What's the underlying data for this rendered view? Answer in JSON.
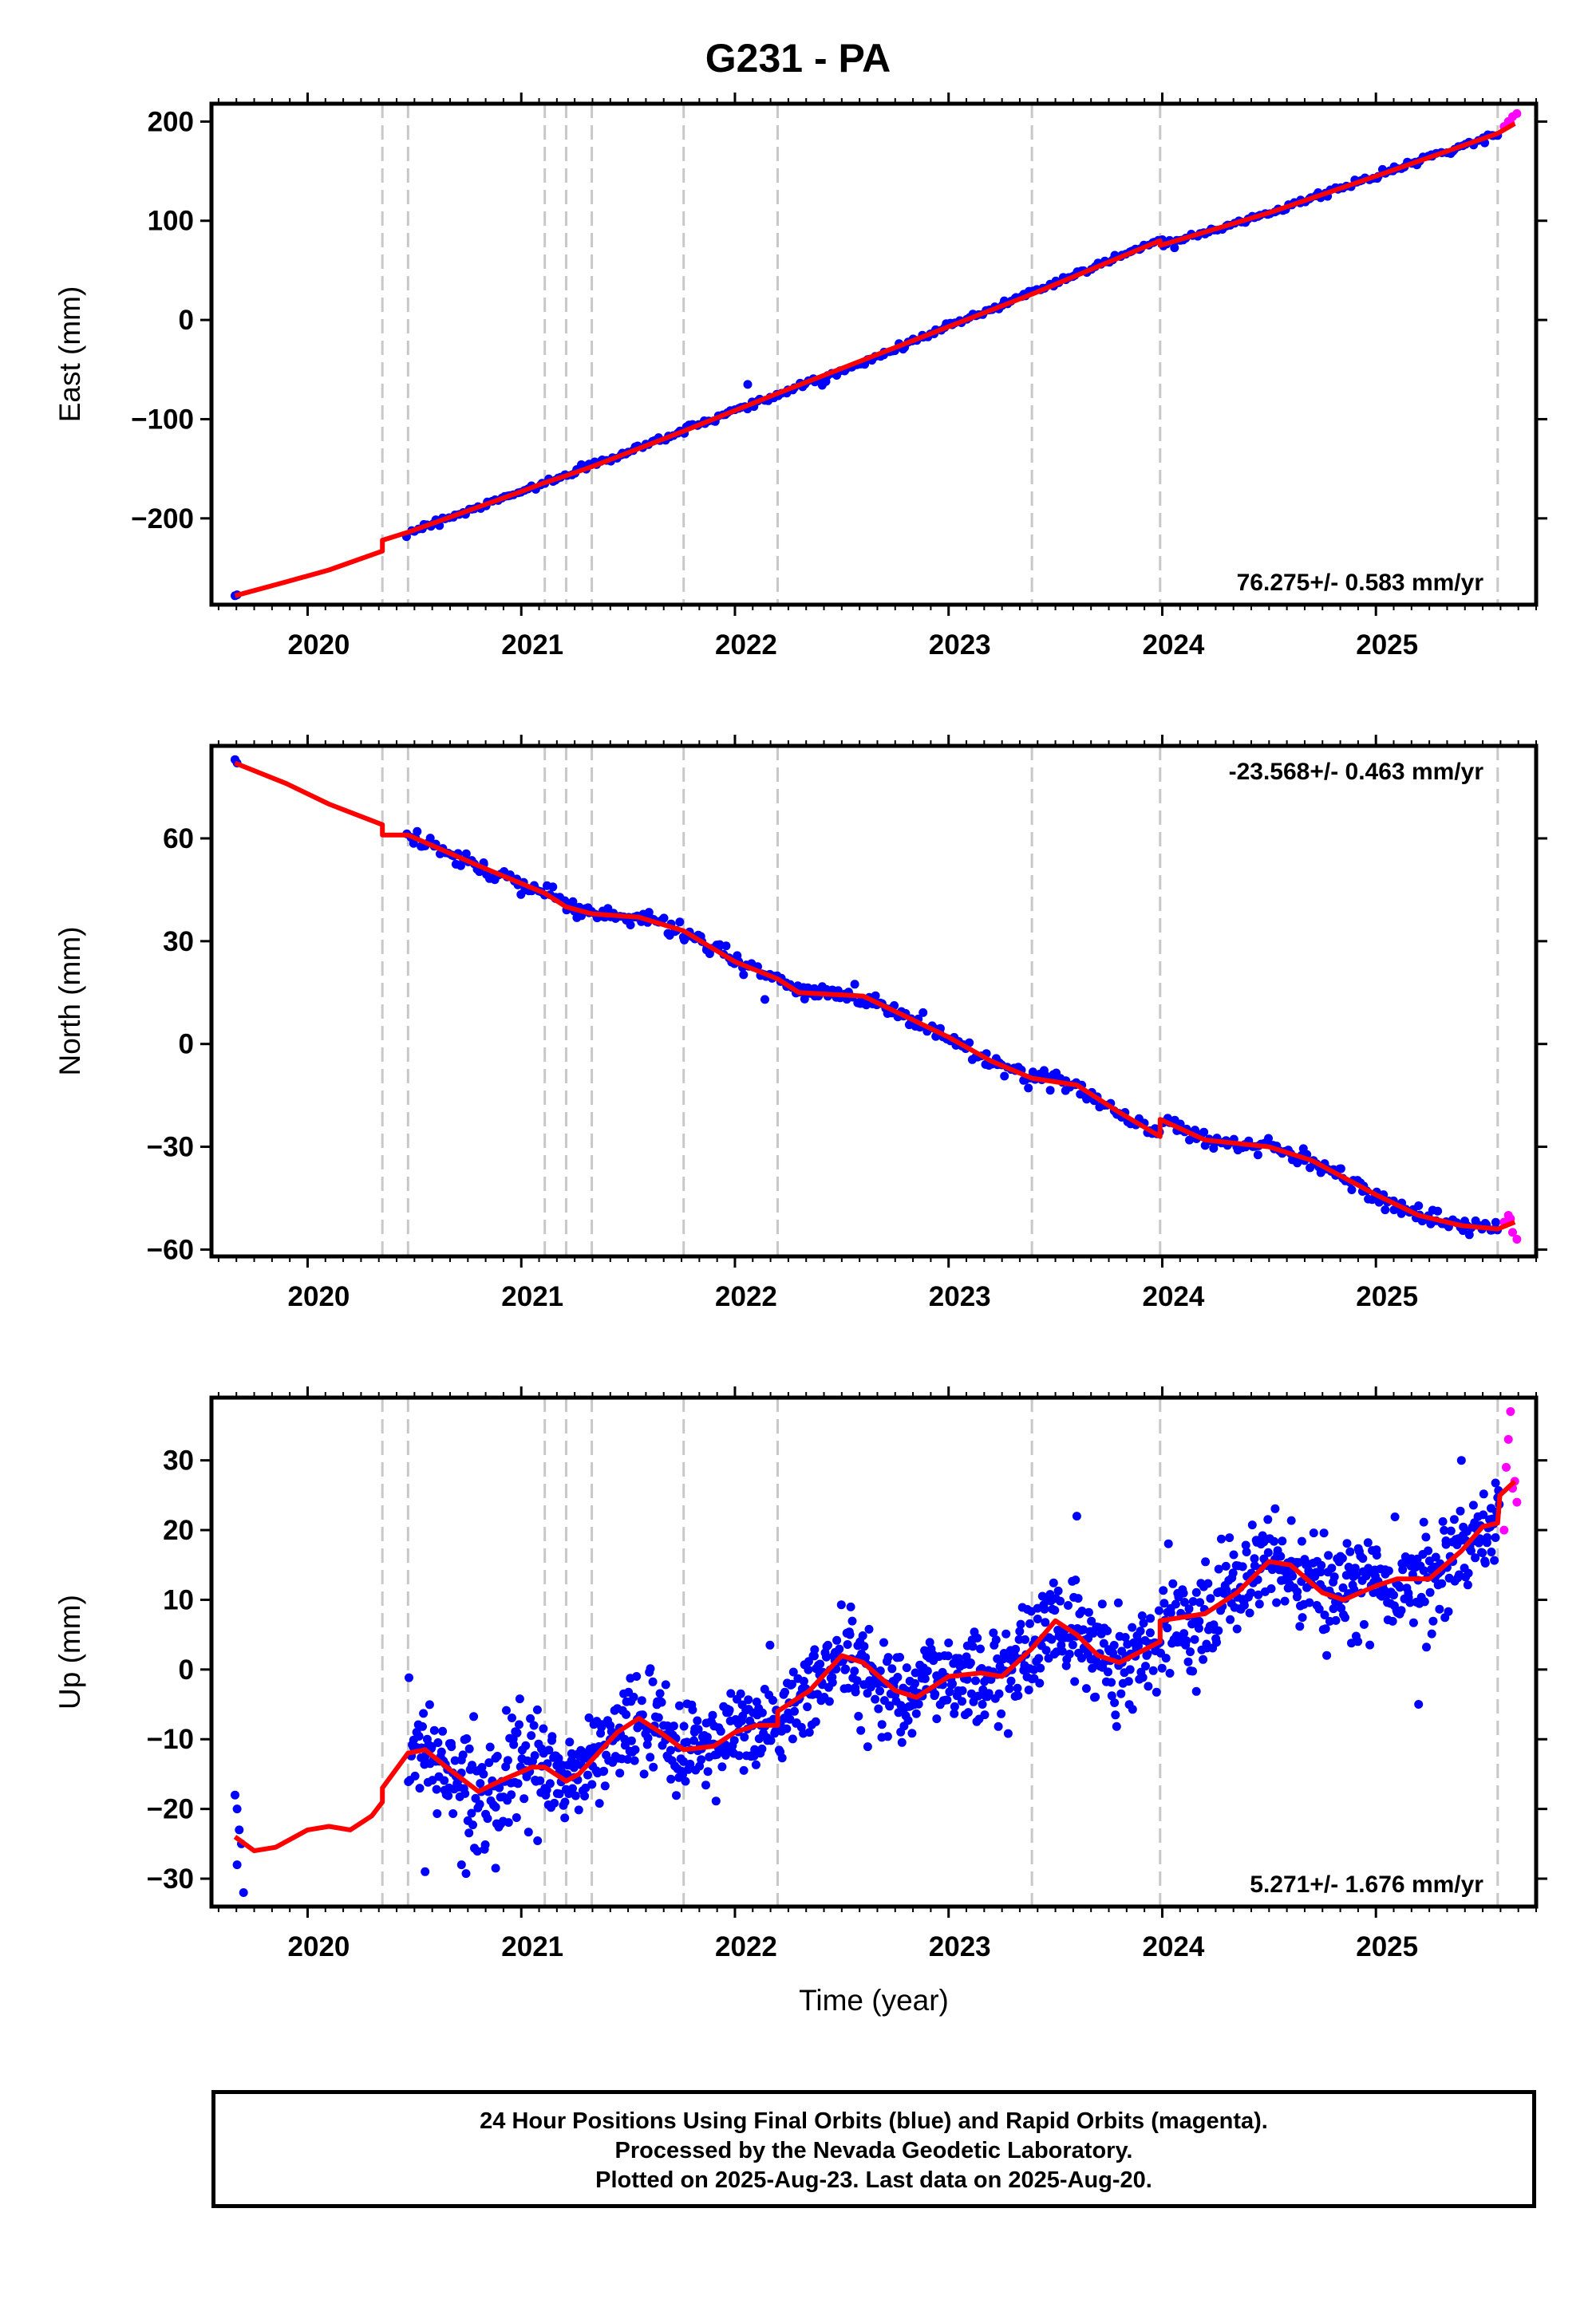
{
  "title": "G231 - PA",
  "chart_data": [
    {
      "type": "scatter",
      "id": "east",
      "ylabel": "East (mm)",
      "xlim": [
        2019.55,
        2025.75
      ],
      "ylim": [
        -287,
        218
      ],
      "yticks": [
        -200,
        -100,
        0,
        100,
        200
      ],
      "yticklabels": [
        "−200",
        "−100",
        "0",
        "100",
        "200"
      ],
      "xticks": [
        2020,
        2021,
        2022,
        2023,
        2024,
        2025
      ],
      "xticklabels": [
        "2020",
        "2021",
        "2022",
        "2023",
        "2024",
        "2025"
      ],
      "rate_label": "76.275+/- 0.583 mm/yr",
      "rate_position": "bottom-right",
      "vlines": [
        2020.35,
        2020.47,
        2021.11,
        2021.21,
        2021.33,
        2021.76,
        2022.2,
        2023.39,
        2023.99,
        2025.57
      ],
      "model_line": [
        [
          2019.66,
          -278
        ],
        [
          2019.9,
          -264
        ],
        [
          2020.1,
          -252
        ],
        [
          2020.35,
          -233
        ],
        [
          2020.35,
          -222
        ],
        [
          2020.47,
          -214
        ],
        [
          2021.0,
          -173
        ],
        [
          2021.11,
          -164
        ],
        [
          2021.21,
          -157
        ],
        [
          2021.33,
          -148
        ],
        [
          2021.76,
          -112
        ],
        [
          2022.2,
          -74
        ],
        [
          2023.39,
          26
        ],
        [
          2023.99,
          80
        ],
        [
          2023.99,
          75
        ],
        [
          2024.5,
          108
        ],
        [
          2025.0,
          145
        ],
        [
          2025.57,
          188
        ],
        [
          2025.65,
          198
        ]
      ],
      "series": [
        {
          "color": "#0000ff",
          "noise": 1.6,
          "density": 0.015,
          "start": 2020.47,
          "end": 2025.58,
          "anchors": [
            [
              2020.47,
              -214
            ],
            [
              2021.0,
              -173
            ],
            [
              2021.5,
              -133
            ],
            [
              2022.0,
              -91
            ],
            [
              2022.5,
              -52
            ],
            [
              2023.0,
              -6
            ],
            [
              2023.5,
              38
            ],
            [
              2023.99,
              81
            ],
            [
              2024.0,
              76
            ],
            [
              2024.5,
              108
            ],
            [
              2025.0,
              145
            ],
            [
              2025.58,
              188
            ]
          ],
          "extra": [
            [
              2019.66,
              -278
            ],
            [
              2019.67,
              -277
            ],
            [
              2022.06,
              -65
            ]
          ]
        },
        {
          "color": "#ff00ff",
          "noise": 0,
          "points": [
            [
              2025.6,
              195
            ],
            [
              2025.62,
              200
            ],
            [
              2025.64,
              205
            ],
            [
              2025.66,
              208
            ],
            [
              2025.63,
              198
            ]
          ]
        }
      ]
    },
    {
      "type": "scatter",
      "id": "north",
      "ylabel": "North (mm)",
      "xlim": [
        2019.55,
        2025.75
      ],
      "ylim": [
        -62,
        87
      ],
      "yticks": [
        -60,
        -30,
        0,
        30,
        60
      ],
      "yticklabels": [
        "−60",
        "−30",
        "0",
        "30",
        "60"
      ],
      "xticks": [
        2020,
        2021,
        2022,
        2023,
        2024,
        2025
      ],
      "xticklabels": [
        "2020",
        "2021",
        "2022",
        "2023",
        "2024",
        "2025"
      ],
      "rate_label": "-23.568+/- 0.463 mm/yr",
      "rate_position": "top-right",
      "vlines": [
        2020.35,
        2020.47,
        2021.11,
        2021.21,
        2021.33,
        2021.76,
        2022.2,
        2023.39,
        2023.99,
        2025.57
      ],
      "model_line": [
        [
          2019.66,
          82
        ],
        [
          2019.9,
          76
        ],
        [
          2020.1,
          70
        ],
        [
          2020.35,
          64
        ],
        [
          2020.35,
          61
        ],
        [
          2020.47,
          61
        ],
        [
          2020.8,
          52
        ],
        [
          2021.11,
          44
        ],
        [
          2021.21,
          40
        ],
        [
          2021.33,
          38
        ],
        [
          2021.55,
          37
        ],
        [
          2021.76,
          33
        ],
        [
          2022.0,
          24
        ],
        [
          2022.2,
          19
        ],
        [
          2022.3,
          15
        ],
        [
          2022.6,
          14
        ],
        [
          2022.8,
          8
        ],
        [
          2023.0,
          2
        ],
        [
          2023.2,
          -5
        ],
        [
          2023.39,
          -10
        ],
        [
          2023.6,
          -12
        ],
        [
          2023.8,
          -20
        ],
        [
          2023.99,
          -27
        ],
        [
          2023.99,
          -22
        ],
        [
          2024.2,
          -28
        ],
        [
          2024.5,
          -30
        ],
        [
          2024.7,
          -34
        ],
        [
          2025.0,
          -44
        ],
        [
          2025.2,
          -50
        ],
        [
          2025.4,
          -53
        ],
        [
          2025.57,
          -54
        ],
        [
          2025.65,
          -52
        ]
      ],
      "series": [
        {
          "color": "#0000ff",
          "noise": 1.3,
          "density": 0.012,
          "start": 2020.47,
          "end": 2025.58,
          "anchors": [
            [
              2020.47,
              61
            ],
            [
              2020.8,
              52
            ],
            [
              2021.11,
              44
            ],
            [
              2021.33,
              38
            ],
            [
              2021.55,
              37
            ],
            [
              2021.76,
              33
            ],
            [
              2022.0,
              24
            ],
            [
              2022.2,
              19
            ],
            [
              2022.3,
              15
            ],
            [
              2022.6,
              14
            ],
            [
              2022.8,
              8
            ],
            [
              2023.0,
              2
            ],
            [
              2023.2,
              -5
            ],
            [
              2023.39,
              -10
            ],
            [
              2023.6,
              -12
            ],
            [
              2023.8,
              -20
            ],
            [
              2023.99,
              -27
            ],
            [
              2024.0,
              -22
            ],
            [
              2024.2,
              -28
            ],
            [
              2024.5,
              -30
            ],
            [
              2024.7,
              -34
            ],
            [
              2025.0,
              -44
            ],
            [
              2025.2,
              -50
            ],
            [
              2025.4,
              -53
            ],
            [
              2025.58,
              -54
            ]
          ],
          "extra": [
            [
              2019.66,
              83
            ],
            [
              2019.67,
              82
            ],
            [
              2022.14,
              13
            ]
          ]
        },
        {
          "color": "#ff00ff",
          "noise": 0,
          "points": [
            [
              2025.6,
              -52
            ],
            [
              2025.62,
              -50
            ],
            [
              2025.64,
              -55
            ],
            [
              2025.66,
              -57
            ],
            [
              2025.63,
              -51
            ]
          ]
        }
      ]
    },
    {
      "type": "scatter",
      "id": "up",
      "ylabel": "Up (mm)",
      "xlabel": "Time (year)",
      "xlim": [
        2019.55,
        2025.75
      ],
      "ylim": [
        -34,
        39
      ],
      "yticks": [
        -30,
        -20,
        -10,
        0,
        10,
        20,
        30
      ],
      "yticklabels": [
        "−30",
        "−20",
        "−10",
        "0",
        "10",
        "20",
        "30"
      ],
      "xticks": [
        2020,
        2021,
        2022,
        2023,
        2024,
        2025
      ],
      "xticklabels": [
        "2020",
        "2021",
        "2022",
        "2023",
        "2024",
        "2025"
      ],
      "rate_label": "5.271+/- 1.676 mm/yr",
      "rate_position": "bottom-right",
      "vlines": [
        2020.35,
        2020.47,
        2021.11,
        2021.21,
        2021.33,
        2021.76,
        2022.2,
        2023.39,
        2023.99,
        2025.57
      ],
      "model_line": [
        [
          2019.66,
          -24
        ],
        [
          2019.75,
          -26
        ],
        [
          2019.85,
          -25.5
        ],
        [
          2020.0,
          -23
        ],
        [
          2020.1,
          -22.5
        ],
        [
          2020.2,
          -23
        ],
        [
          2020.3,
          -21
        ],
        [
          2020.35,
          -19
        ],
        [
          2020.35,
          -17
        ],
        [
          2020.47,
          -12
        ],
        [
          2020.55,
          -11.5
        ],
        [
          2020.65,
          -14
        ],
        [
          2020.8,
          -17.5
        ],
        [
          2020.9,
          -16
        ],
        [
          2021.05,
          -14
        ],
        [
          2021.11,
          -14
        ],
        [
          2021.21,
          -16
        ],
        [
          2021.27,
          -15
        ],
        [
          2021.33,
          -13
        ],
        [
          2021.45,
          -9
        ],
        [
          2021.55,
          -7
        ],
        [
          2021.65,
          -9
        ],
        [
          2021.76,
          -11.5
        ],
        [
          2021.9,
          -11
        ],
        [
          2022.0,
          -9
        ],
        [
          2022.1,
          -8
        ],
        [
          2022.2,
          -8
        ],
        [
          2022.2,
          -6
        ],
        [
          2022.35,
          -3
        ],
        [
          2022.5,
          2
        ],
        [
          2022.6,
          1
        ],
        [
          2022.75,
          -3
        ],
        [
          2022.85,
          -4
        ],
        [
          2023.0,
          -1
        ],
        [
          2023.15,
          -0.5
        ],
        [
          2023.25,
          -1
        ],
        [
          2023.39,
          3
        ],
        [
          2023.5,
          7
        ],
        [
          2023.6,
          5
        ],
        [
          2023.7,
          2
        ],
        [
          2023.8,
          1
        ],
        [
          2023.99,
          4
        ],
        [
          2023.99,
          7
        ],
        [
          2024.2,
          8
        ],
        [
          2024.35,
          11
        ],
        [
          2024.5,
          15.5
        ],
        [
          2024.6,
          15
        ],
        [
          2024.75,
          11
        ],
        [
          2024.85,
          10
        ],
        [
          2025.0,
          12
        ],
        [
          2025.1,
          13
        ],
        [
          2025.25,
          13
        ],
        [
          2025.4,
          17
        ],
        [
          2025.5,
          20.5
        ],
        [
          2025.57,
          21
        ],
        [
          2025.58,
          25
        ],
        [
          2025.65,
          27
        ]
      ],
      "series": [
        {
          "color": "#0000ff",
          "noise": 3.4,
          "density": 0.004,
          "start": 2020.47,
          "end": 2025.58,
          "anchors": [
            [
              2020.47,
              -12
            ],
            [
              2020.55,
              -11.5
            ],
            [
              2020.65,
              -14
            ],
            [
              2020.8,
              -17.5
            ],
            [
              2021.05,
              -14
            ],
            [
              2021.21,
              -16
            ],
            [
              2021.33,
              -13
            ],
            [
              2021.55,
              -7
            ],
            [
              2021.76,
              -11.5
            ],
            [
              2022.0,
              -9
            ],
            [
              2022.2,
              -8
            ],
            [
              2022.35,
              -3
            ],
            [
              2022.5,
              2
            ],
            [
              2022.75,
              -3
            ],
            [
              2023.0,
              -1
            ],
            [
              2023.25,
              -1
            ],
            [
              2023.5,
              7
            ],
            [
              2023.8,
              1
            ],
            [
              2023.99,
              4
            ],
            [
              2024.0,
              7
            ],
            [
              2024.2,
              8
            ],
            [
              2024.5,
              15.5
            ],
            [
              2024.75,
              11
            ],
            [
              2025.1,
              13
            ],
            [
              2025.25,
              13
            ],
            [
              2025.5,
              20.5
            ],
            [
              2025.58,
              21
            ]
          ],
          "extra": [
            [
              2019.66,
              -18
            ],
            [
              2019.67,
              -20
            ],
            [
              2019.68,
              -23
            ],
            [
              2019.69,
              -25
            ],
            [
              2019.67,
              -28
            ],
            [
              2019.7,
              -32
            ],
            [
              2020.55,
              -29
            ],
            [
              2020.72,
              -28
            ],
            [
              2020.88,
              -28.5
            ],
            [
              2023.6,
              22
            ],
            [
              2025.2,
              -5
            ],
            [
              2025.4,
              30
            ]
          ]
        },
        {
          "color": "#ff00ff",
          "noise": 0,
          "points": [
            [
              2025.6,
              20
            ],
            [
              2025.61,
              29
            ],
            [
              2025.62,
              33
            ],
            [
              2025.63,
              37
            ],
            [
              2025.64,
              26
            ],
            [
              2025.65,
              27
            ],
            [
              2025.66,
              24
            ]
          ]
        }
      ]
    }
  ],
  "footer": {
    "line1": "24 Hour Positions Using Final Orbits (blue) and Rapid Orbits (magenta).",
    "line2": "Processed by the Nevada Geodetic Laboratory.",
    "line3": "Plotted on 2025-Aug-23. Last data on 2025-Aug-20."
  }
}
